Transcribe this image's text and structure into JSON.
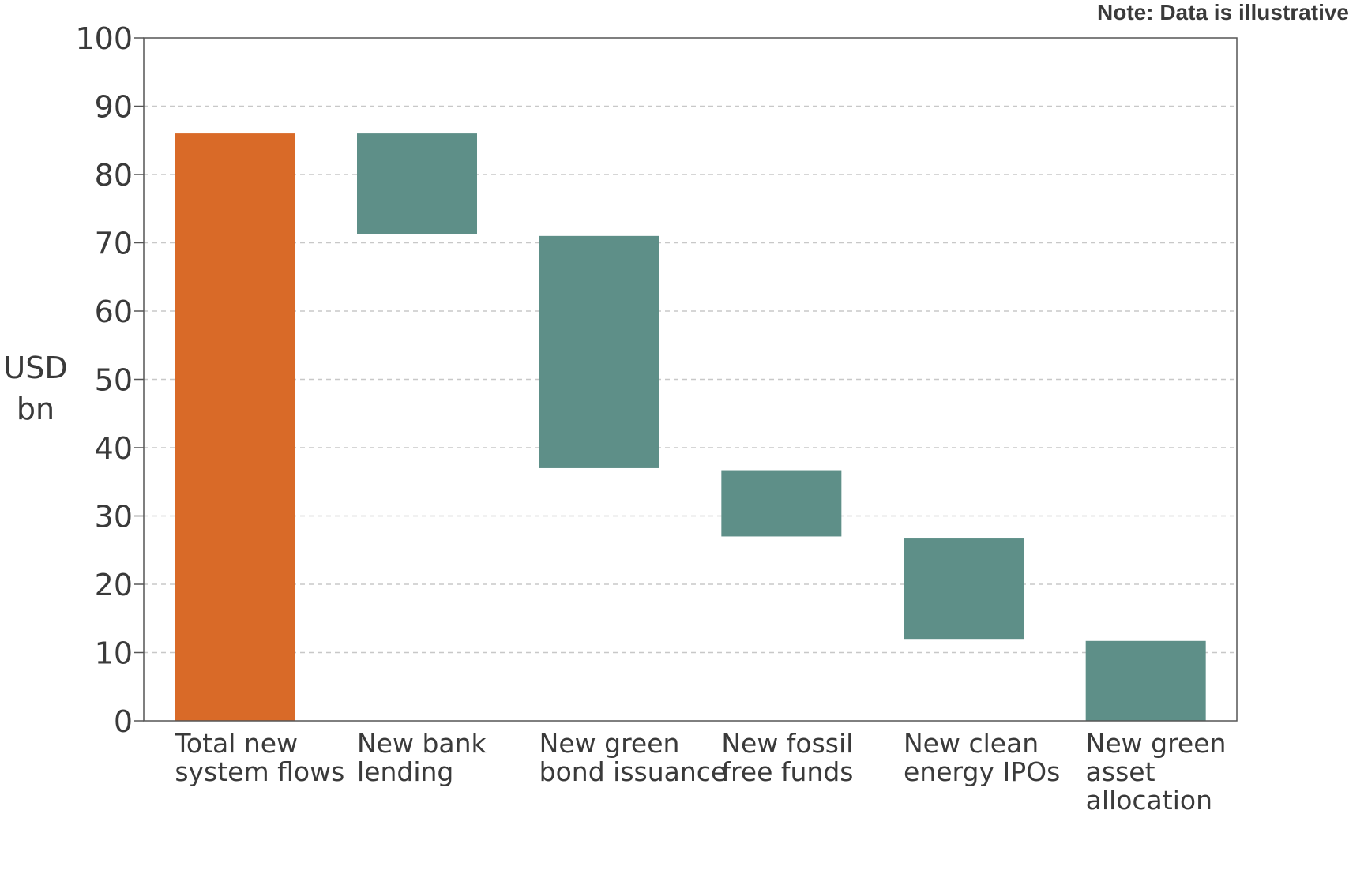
{
  "note": "Note: Data is illustrative",
  "chart_data": {
    "type": "bar",
    "subtype": "waterfall",
    "ylabel_lines": [
      "USD",
      "bn"
    ],
    "ylim": [
      0,
      100
    ],
    "yticks": [
      0,
      10,
      20,
      30,
      40,
      50,
      60,
      70,
      80,
      90,
      100
    ],
    "grid": "horizontal dashed",
    "categories": [
      [
        "Total new",
        "system flows"
      ],
      [
        "New bank",
        "lending"
      ],
      [
        "New green",
        "bond issuance"
      ],
      [
        "New fossil",
        "free funds"
      ],
      [
        "New clean",
        "energy IPOs"
      ],
      [
        "New green",
        "asset",
        "allocation"
      ]
    ],
    "bars": [
      {
        "bottom": 0,
        "top": 86,
        "kind": "total"
      },
      {
        "bottom": 71.3,
        "top": 86,
        "kind": "component"
      },
      {
        "bottom": 37,
        "top": 71,
        "kind": "component"
      },
      {
        "bottom": 27,
        "top": 36.7,
        "kind": "component"
      },
      {
        "bottom": 12,
        "top": 26.7,
        "kind": "component"
      },
      {
        "bottom": 0,
        "top": 11.7,
        "kind": "component"
      }
    ],
    "colors": {
      "total": "#d96a28",
      "component": "#5e8f88",
      "grid": "#c8c8c8",
      "axis": "#555555"
    }
  }
}
